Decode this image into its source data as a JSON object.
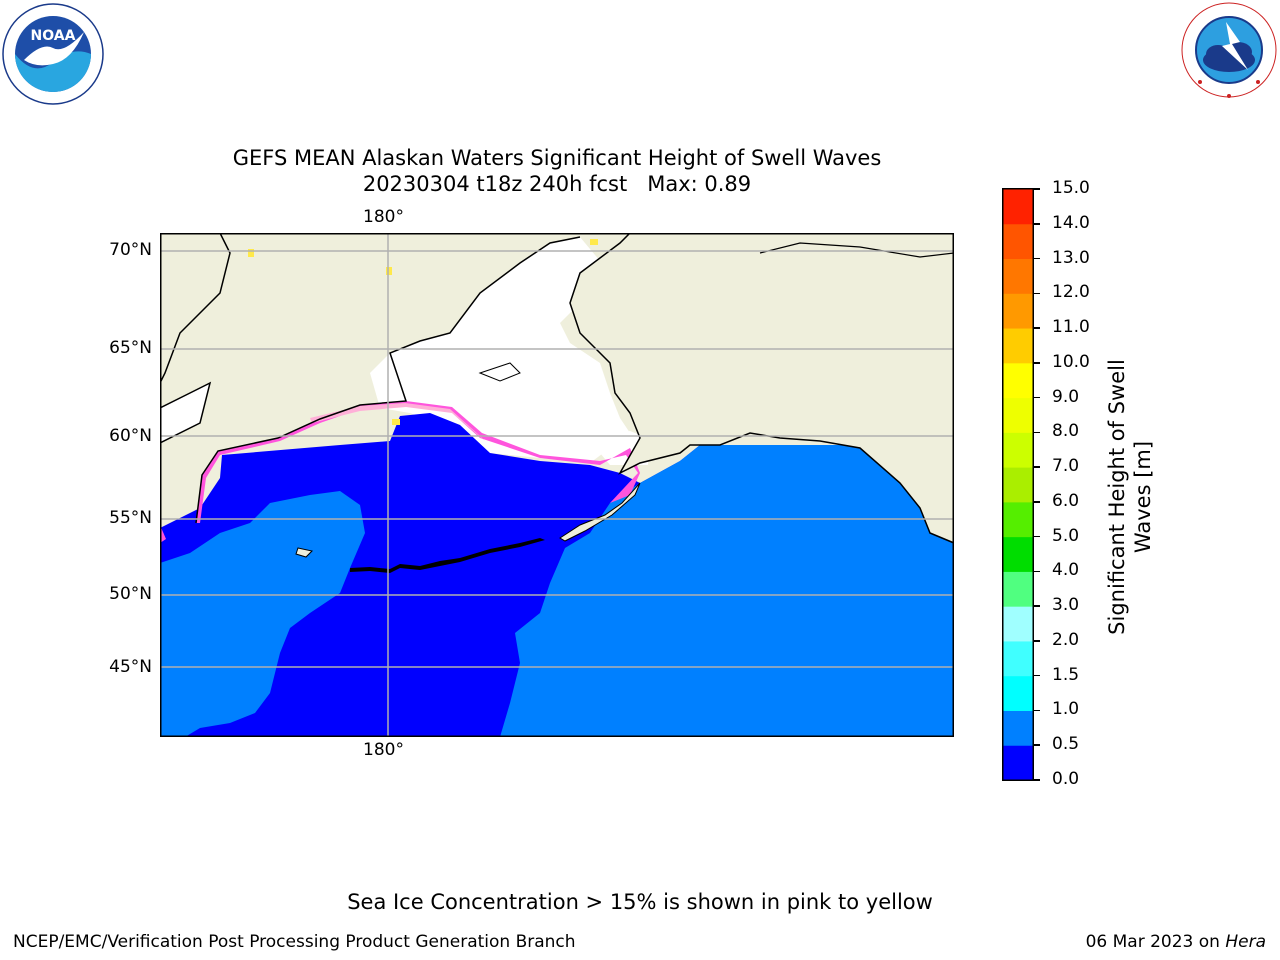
{
  "header": {
    "title_line1": "GEFS MEAN Alaskan Waters Significant Height of Swell Waves",
    "title_date": "20230304 t18z 240h fcst",
    "title_max": "Max: 0.89"
  },
  "logos": {
    "left": {
      "icon": "noaa-logo",
      "text": "NOAA",
      "ring_text": "NATIONAL OCEANIC AND ATMOSPHERIC ADMINISTRATION · U.S. DEPARTMENT OF COMMERCE"
    },
    "right": {
      "icon": "nws-logo",
      "ring_text": "NATIONAL WEATHER SERVICE"
    }
  },
  "map": {
    "lat_labels": [
      "70°N",
      "65°N",
      "60°N",
      "55°N",
      "50°N",
      "45°N"
    ],
    "lon_label_top": "180°",
    "lon_label_bottom": "180°",
    "colors": {
      "land": "#efefdc",
      "coast": "#000000",
      "grid": "#b0b0b0",
      "ice_pink": "#ff55dd",
      "ice_yellow": "#ffe94a"
    }
  },
  "colorbar": {
    "label_line1": "Significant Height of Swell",
    "label_line2": "Waves [m]",
    "ticks": [
      "0.0",
      "0.5",
      "1.0",
      "1.5",
      "2.0",
      "3.0",
      "4.0",
      "5.0",
      "6.0",
      "7.0",
      "8.0",
      "9.0",
      "10.0",
      "11.0",
      "12.0",
      "13.0",
      "14.0",
      "15.0"
    ],
    "colors": [
      "#0000ff",
      "#0080ff",
      "#00ffff",
      "#40ffff",
      "#a0ffff",
      "#50ff80",
      "#00dd00",
      "#55ee00",
      "#aaee00",
      "#ccff00",
      "#eeff00",
      "#ffff00",
      "#ffcc00",
      "#ff9900",
      "#ff7700",
      "#ff5500",
      "#ff2200"
    ]
  },
  "footer": {
    "ice_note": "Sea Ice Concentration > 15% is shown in pink to yellow",
    "credit": "NCEP/EMC/Verification Post Processing Product Generation Branch",
    "date_text": "06 Mar 2023 on ",
    "machine": "Hera"
  }
}
